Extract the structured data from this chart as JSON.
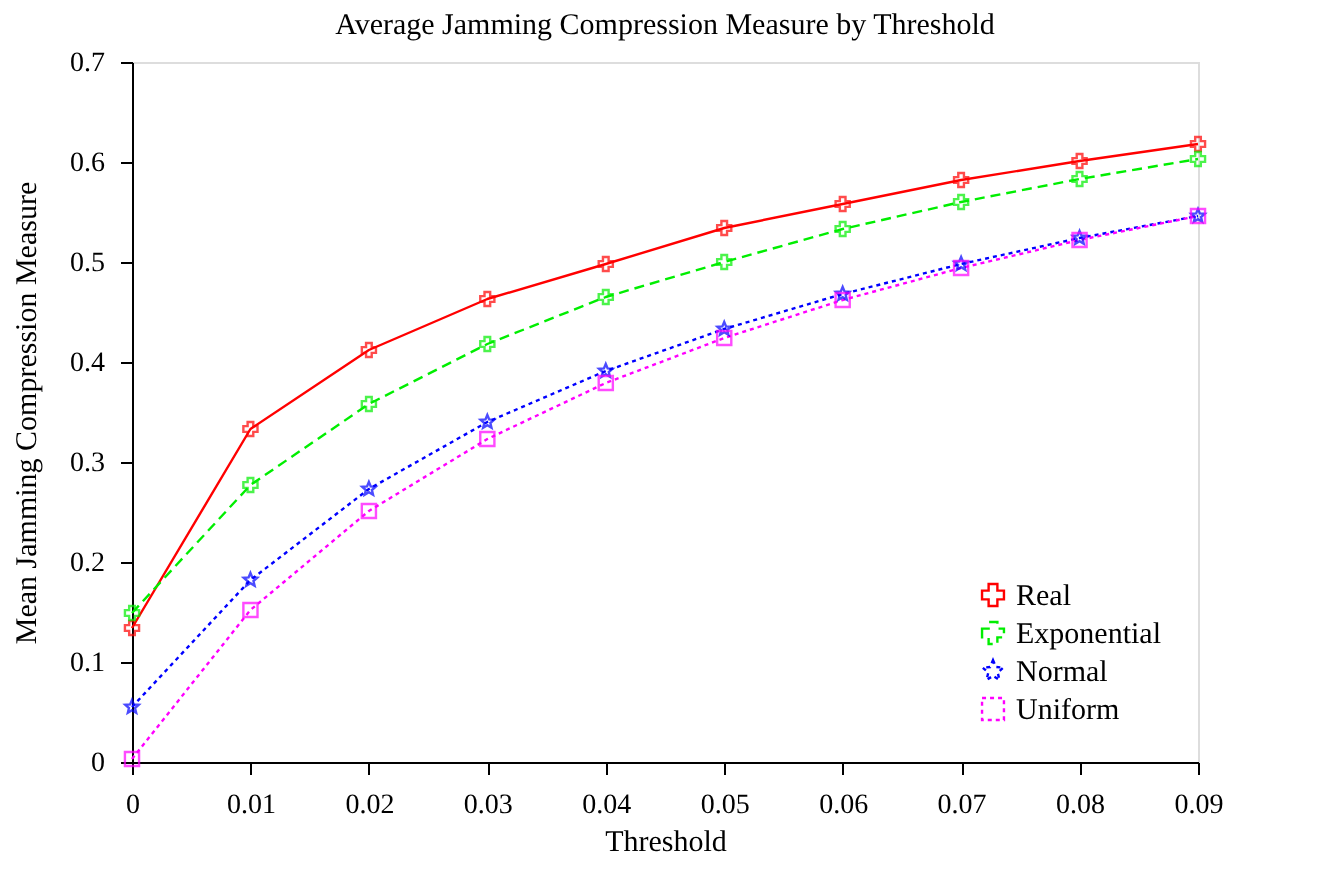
{
  "chart_data": {
    "type": "line",
    "title": "Average Jamming Compression Measure by Threshold",
    "xlabel": "Threshold",
    "ylabel": "Mean Jamming Compression Measure",
    "x": [
      0,
      0.01,
      0.02,
      0.03,
      0.04,
      0.05,
      0.06,
      0.07,
      0.08,
      0.09
    ],
    "series": [
      {
        "name": "Real",
        "color": "#ff0000",
        "marker": "cross",
        "line_style": "solid",
        "values": [
          0.134,
          0.333,
          0.412,
          0.463,
          0.498,
          0.534,
          0.558,
          0.582,
          0.601,
          0.618
        ]
      },
      {
        "name": "Exponential",
        "color": "#00ee00",
        "marker": "cross",
        "line_style": "dashed",
        "values": [
          0.149,
          0.277,
          0.358,
          0.418,
          0.465,
          0.5,
          0.533,
          0.56,
          0.583,
          0.603
        ]
      },
      {
        "name": "Normal",
        "color": "#0000ff",
        "marker": "star",
        "line_style": "dotted",
        "values": [
          0.055,
          0.182,
          0.273,
          0.34,
          0.391,
          0.433,
          0.468,
          0.498,
          0.524,
          0.546
        ]
      },
      {
        "name": "Uniform",
        "color": "#ff00ff",
        "marker": "square",
        "line_style": "dotted",
        "values": [
          0.003,
          0.152,
          0.251,
          0.323,
          0.379,
          0.424,
          0.462,
          0.494,
          0.522,
          0.546
        ]
      }
    ],
    "xlim": [
      0,
      0.09
    ],
    "ylim": [
      0,
      0.7
    ],
    "xticks": [
      0,
      0.01,
      0.02,
      0.03,
      0.04,
      0.05,
      0.06,
      0.07,
      0.08,
      0.09
    ],
    "yticks": [
      0,
      0.1,
      0.2,
      0.3,
      0.4,
      0.5,
      0.6,
      0.7
    ],
    "grid": false,
    "legend": "bottom right"
  }
}
